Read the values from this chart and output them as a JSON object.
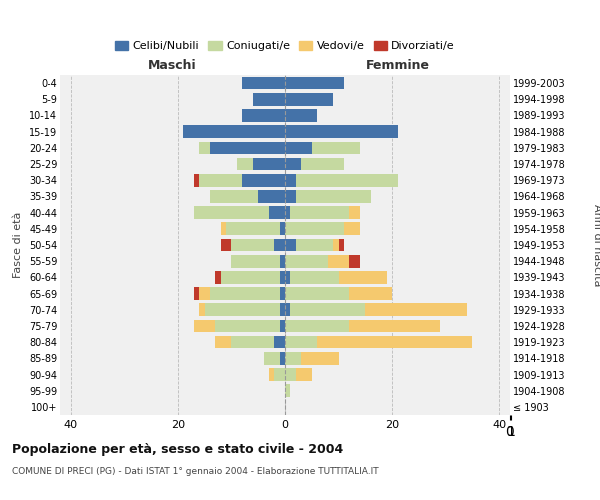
{
  "age_groups": [
    "100+",
    "95-99",
    "90-94",
    "85-89",
    "80-84",
    "75-79",
    "70-74",
    "65-69",
    "60-64",
    "55-59",
    "50-54",
    "45-49",
    "40-44",
    "35-39",
    "30-34",
    "25-29",
    "20-24",
    "15-19",
    "10-14",
    "5-9",
    "0-4"
  ],
  "birth_years": [
    "≤ 1903",
    "1904-1908",
    "1909-1913",
    "1914-1918",
    "1919-1923",
    "1924-1928",
    "1929-1933",
    "1934-1938",
    "1939-1943",
    "1944-1948",
    "1949-1953",
    "1954-1958",
    "1959-1963",
    "1964-1968",
    "1969-1973",
    "1974-1978",
    "1979-1983",
    "1984-1988",
    "1989-1993",
    "1994-1998",
    "1999-2003"
  ],
  "males": {
    "celibi": [
      0,
      0,
      0,
      1,
      2,
      1,
      1,
      1,
      1,
      1,
      2,
      1,
      3,
      5,
      8,
      6,
      14,
      19,
      8,
      6,
      8
    ],
    "coniugati": [
      0,
      0,
      2,
      3,
      8,
      12,
      14,
      13,
      11,
      9,
      8,
      10,
      14,
      9,
      8,
      3,
      2,
      0,
      0,
      0,
      0
    ],
    "vedovi": [
      0,
      0,
      1,
      0,
      3,
      4,
      1,
      2,
      0,
      0,
      0,
      1,
      0,
      0,
      0,
      0,
      0,
      0,
      0,
      0,
      0
    ],
    "divorziati": [
      0,
      0,
      0,
      0,
      0,
      0,
      0,
      1,
      1,
      0,
      2,
      0,
      0,
      0,
      1,
      0,
      0,
      0,
      0,
      0,
      0
    ]
  },
  "females": {
    "nubili": [
      0,
      0,
      0,
      0,
      0,
      0,
      1,
      0,
      1,
      0,
      2,
      0,
      1,
      2,
      2,
      3,
      5,
      21,
      6,
      9,
      11
    ],
    "coniugate": [
      0,
      1,
      2,
      3,
      6,
      12,
      14,
      12,
      9,
      8,
      7,
      11,
      11,
      14,
      19,
      8,
      9,
      0,
      0,
      0,
      0
    ],
    "vedove": [
      0,
      0,
      3,
      7,
      29,
      17,
      19,
      8,
      9,
      4,
      1,
      3,
      2,
      0,
      0,
      0,
      0,
      0,
      0,
      0,
      0
    ],
    "divorziate": [
      0,
      0,
      0,
      0,
      0,
      0,
      0,
      0,
      0,
      2,
      1,
      0,
      0,
      0,
      0,
      0,
      0,
      0,
      0,
      0,
      0
    ]
  },
  "colors": {
    "celibi": "#4472a8",
    "coniugati": "#c5d9a0",
    "vedovi": "#f5c96e",
    "divorziati": "#c0392b"
  },
  "legend_labels": [
    "Celibi/Nubili",
    "Coniugati/e",
    "Vedovi/e",
    "Divorziati/e"
  ],
  "title": "Popolazione per età, sesso e stato civile - 2004",
  "subtitle": "COMUNE DI PRECI (PG) - Dati ISTAT 1° gennaio 2004 - Elaborazione TUTTITALIA.IT",
  "xlabel_left": "Maschi",
  "xlabel_right": "Femmine",
  "ylabel_left": "Fasce di età",
  "ylabel_right": "Anni di nascita",
  "xlim": 42,
  "background_color": "#f0f0f0"
}
